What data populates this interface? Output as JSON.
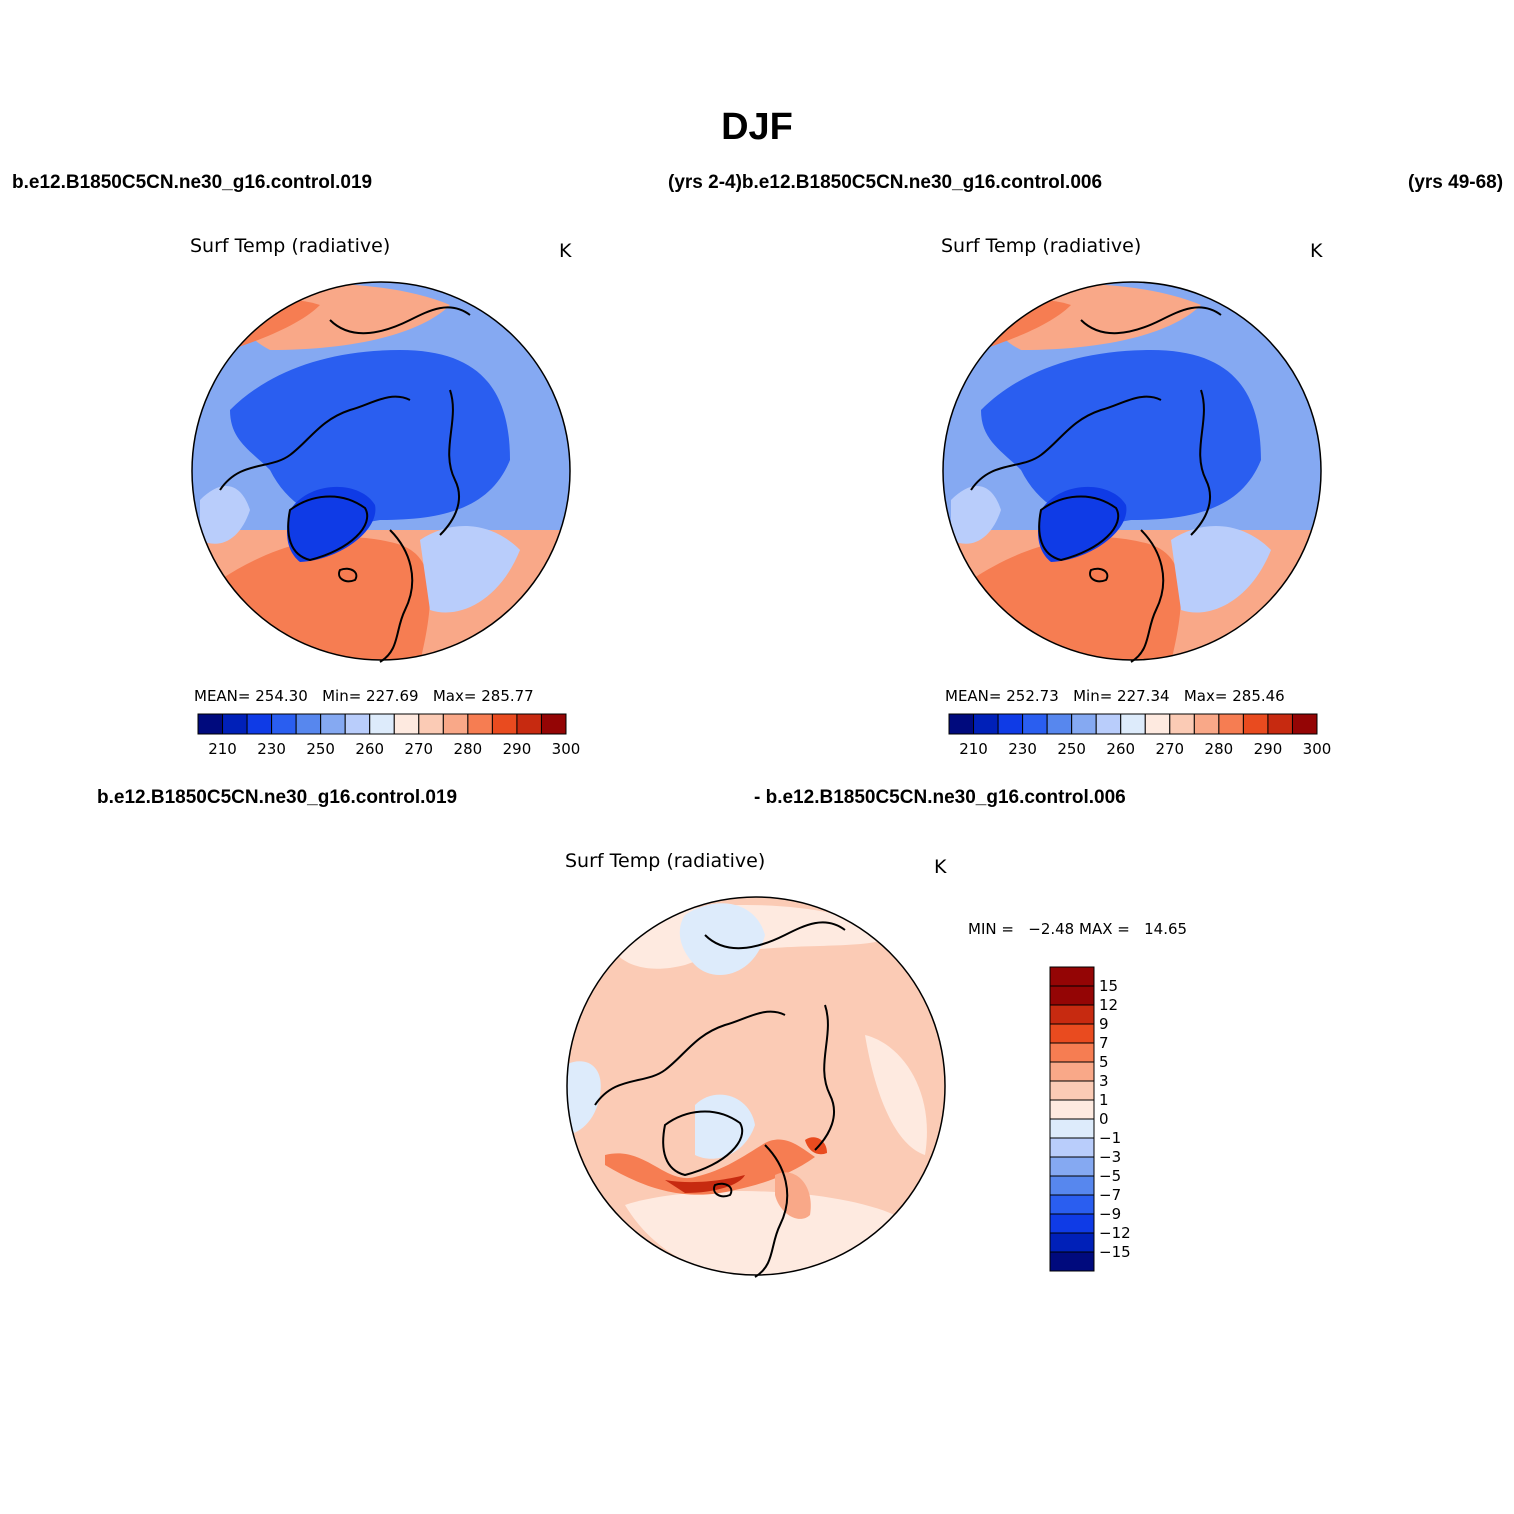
{
  "season": "DJF",
  "top_left_case": "b.e12.B1850C5CN.ne30_g16.control.019",
  "top_middle_case": "(yrs 2-4)b.e12.B1850C5CN.ne30_g16.control.006",
  "top_right_case": "(yrs 49-68)",
  "bottom_left_case": "b.e12.B1850C5CN.ne30_g16.control.019",
  "bottom_right_case": "- b.e12.B1850C5CN.ne30_g16.control.006",
  "colors": {
    "abs_palette": [
      "#000a7d",
      "#0020b8",
      "#0f3be6",
      "#2a5ef0",
      "#5787ee",
      "#85a9f2",
      "#b9cdfb",
      "#ddebfb",
      "#feeae0",
      "#fbcbb5",
      "#f9a888",
      "#f67d52",
      "#e94b1f",
      "#c72a10",
      "#940505"
    ],
    "diff_palette": [
      "#000a7d",
      "#0020b8",
      "#0f3be6",
      "#2a5ef0",
      "#5787ee",
      "#85a9f2",
      "#b9cdfb",
      "#ddebfb",
      "#feeae0",
      "#fbcbb5",
      "#f9a888",
      "#f67d52",
      "#e94b1f",
      "#c72a10",
      "#940505"
    ],
    "coast": "#000000"
  },
  "panels": [
    {
      "id": "case1",
      "title": "Surf Temp (radiative)",
      "units": "K",
      "stats": {
        "mean_label": "MEAN=",
        "mean": "254.30",
        "min_label": "Min=",
        "min": "227.69",
        "max_label": "Max=",
        "max": "285.77"
      },
      "colorbar_labels": [
        "210",
        "230",
        "250",
        "260",
        "270",
        "280",
        "290",
        "300"
      ]
    },
    {
      "id": "case2",
      "title": "Surf Temp (radiative)",
      "units": "K",
      "stats": {
        "mean_label": "MEAN=",
        "mean": "252.73",
        "min_label": "Min=",
        "min": "227.34",
        "max_label": "Max=",
        "max": "285.46"
      },
      "colorbar_labels": [
        "210",
        "230",
        "250",
        "260",
        "270",
        "280",
        "290",
        "300"
      ]
    },
    {
      "id": "difference",
      "title": "Surf Temp (radiative)",
      "units": "K",
      "stats": {
        "min_label": "MIN =",
        "min": "−2.48",
        "max_label": "MAX =",
        "max": "14.65"
      },
      "colorbar_labels": [
        "15",
        "12",
        "9",
        "7",
        "5",
        "3",
        "1",
        "0",
        "−1",
        "−3",
        "−5",
        "−7",
        "−9",
        "−12",
        "−15"
      ]
    }
  ],
  "map_projection": "north-polar-stereographic",
  "map_features": [
    "coastlines"
  ]
}
